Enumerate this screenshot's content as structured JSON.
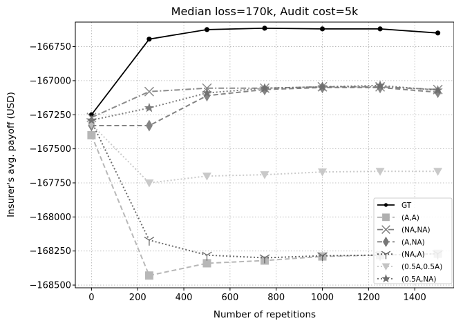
{
  "chart_data": {
    "type": "line",
    "title": "Median loss=170k, Audit cost=5k",
    "xlabel": "Number of repetitions",
    "ylabel": "Insurer's avg. payoff (USD)",
    "xlim": [
      -70,
      1570
    ],
    "ylim": [
      -168520,
      -166570
    ],
    "x_ticks": [
      0,
      200,
      400,
      600,
      800,
      1000,
      1200,
      1400
    ],
    "y_ticks": [
      -168500,
      -168250,
      -168000,
      -167750,
      -167500,
      -167250,
      -167000,
      -166750
    ],
    "grid": true,
    "legend_position": "lower-right",
    "x": [
      0,
      250,
      500,
      750,
      1000,
      1250,
      1500
    ],
    "series": [
      {
        "name": "GT",
        "values": [
          -167250,
          -166695,
          -166625,
          -166615,
          -166620,
          -166620,
          -166650
        ],
        "color": "#000000",
        "marker": "circle",
        "line_style": "solid"
      },
      {
        "name": "(A,A)",
        "values": [
          -167400,
          -168430,
          -168340,
          -168320,
          -168290,
          -168280,
          -168270
        ],
        "color": "#b0b0b0",
        "marker": "square",
        "line_style": "dashed"
      },
      {
        "name": "(NA,NA)",
        "values": [
          -167270,
          -167080,
          -167055,
          -167055,
          -167045,
          -167045,
          -167065
        ],
        "color": "#7f7f7f",
        "marker": "x",
        "line_style": "dashdot"
      },
      {
        "name": "(A,NA)",
        "values": [
          -167330,
          -167330,
          -167110,
          -167065,
          -167050,
          -167050,
          -167085
        ],
        "color": "#777777",
        "marker": "thin_diamond",
        "line_style": "dashed"
      },
      {
        "name": "(NA,A)",
        "values": [
          -167300,
          -168170,
          -168280,
          -168300,
          -168285,
          -168280,
          -168270
        ],
        "color": "#5a5a5a",
        "marker": "tri_down",
        "line_style": "dotted"
      },
      {
        "name": "(0.5A,0.5A)",
        "values": [
          -167320,
          -167750,
          -167700,
          -167690,
          -167670,
          -167665,
          -167665
        ],
        "color": "#c4c4c4",
        "marker": "triangle_down",
        "line_style": "dotted"
      },
      {
        "name": "(0.5A,NA)",
        "values": [
          -167290,
          -167200,
          -167090,
          -167055,
          -167045,
          -167035,
          -167070
        ],
        "color": "#6e6e6e",
        "marker": "star",
        "line_style": "dotted"
      }
    ]
  }
}
